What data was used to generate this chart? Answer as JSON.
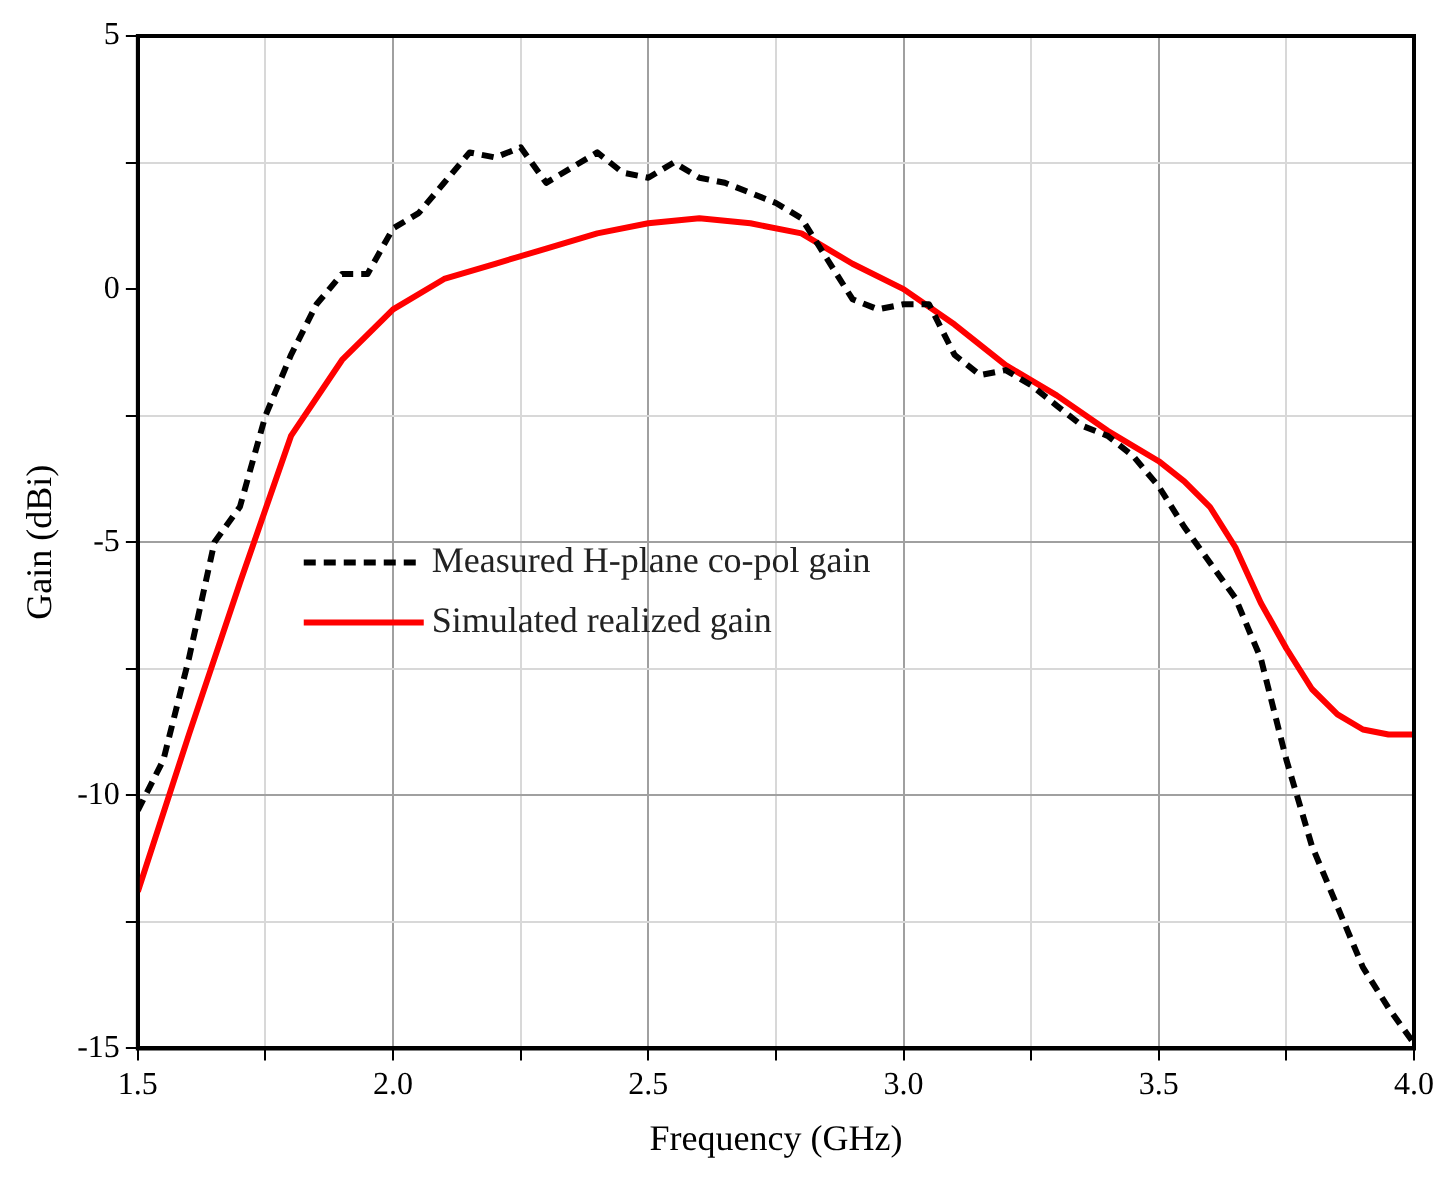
{
  "chart_data": {
    "type": "line",
    "xlabel": "Frequency (GHz)",
    "ylabel": "Gain (dBi)",
    "xlim": [
      1.5,
      4.0
    ],
    "ylim": [
      -15,
      5
    ],
    "xticks": [
      1.5,
      {
        "value": 1.75,
        "label": null
      },
      "2.0",
      {
        "value": 2.25,
        "label": null
      },
      2.5,
      {
        "value": 2.75,
        "label": null
      },
      "3.0",
      {
        "value": 3.25,
        "label": null
      },
      3.5,
      {
        "value": 3.75,
        "label": null
      },
      "4.0"
    ],
    "yticks": [
      -15,
      {
        "value": -12.5,
        "label": null
      },
      -10,
      {
        "value": -7.5,
        "label": null
      },
      -5,
      {
        "value": -2.5,
        "label": null
      },
      0,
      {
        "value": 2.5,
        "label": null
      },
      5
    ],
    "grid": true,
    "legend": "left",
    "marker": "none",
    "series": [
      {
        "name": "Measured H-plane co-pol gain",
        "color": "#000000",
        "line_style": "dashed",
        "x": [
          1.5,
          1.55,
          1.6,
          1.65,
          1.7,
          1.75,
          1.8,
          1.85,
          1.9,
          1.95,
          2.0,
          2.05,
          2.1,
          2.15,
          2.2,
          2.25,
          2.3,
          2.35,
          2.4,
          2.45,
          2.5,
          2.55,
          2.6,
          2.65,
          2.7,
          2.75,
          2.8,
          2.85,
          2.9,
          2.95,
          3.0,
          3.05,
          3.1,
          3.15,
          3.2,
          3.25,
          3.3,
          3.35,
          3.4,
          3.45,
          3.5,
          3.55,
          3.6,
          3.65,
          3.7,
          3.75,
          3.8,
          3.85,
          3.9,
          3.95,
          4.0
        ],
        "values": [
          -10.3,
          -9.3,
          -7.3,
          -5.0,
          -4.3,
          -2.5,
          -1.3,
          -0.3,
          0.3,
          0.3,
          1.2,
          1.5,
          2.1,
          2.7,
          2.6,
          2.8,
          2.1,
          2.4,
          2.7,
          2.3,
          2.2,
          2.5,
          2.2,
          2.1,
          1.9,
          1.7,
          1.4,
          0.6,
          -0.2,
          -0.4,
          -0.3,
          -0.3,
          -1.3,
          -1.7,
          -1.6,
          -1.9,
          -2.3,
          -2.7,
          -2.9,
          -3.3,
          -3.9,
          -4.7,
          -5.4,
          -6.1,
          -7.3,
          -9.3,
          -11.0,
          -12.2,
          -13.4,
          -14.2,
          -14.9
        ]
      },
      {
        "name": "Simulated realized gain",
        "color": "#ff0000",
        "line_style": "solid",
        "x": [
          1.5,
          1.6,
          1.7,
          1.8,
          1.9,
          2.0,
          2.1,
          2.2,
          2.3,
          2.4,
          2.5,
          2.6,
          2.7,
          2.8,
          2.9,
          3.0,
          3.1,
          3.2,
          3.3,
          3.4,
          3.5,
          3.55,
          3.6,
          3.65,
          3.7,
          3.75,
          3.8,
          3.85,
          3.9,
          3.95,
          4.0
        ],
        "values": [
          -11.9,
          -8.8,
          -5.8,
          -2.9,
          -1.4,
          -0.4,
          0.2,
          0.5,
          0.8,
          1.1,
          1.3,
          1.4,
          1.3,
          1.1,
          0.5,
          0.0,
          -0.7,
          -1.5,
          -2.1,
          -2.8,
          -3.4,
          -3.8,
          -4.3,
          -5.1,
          -6.2,
          -7.1,
          -7.9,
          -8.4,
          -8.7,
          -8.8,
          -8.8
        ]
      }
    ]
  }
}
